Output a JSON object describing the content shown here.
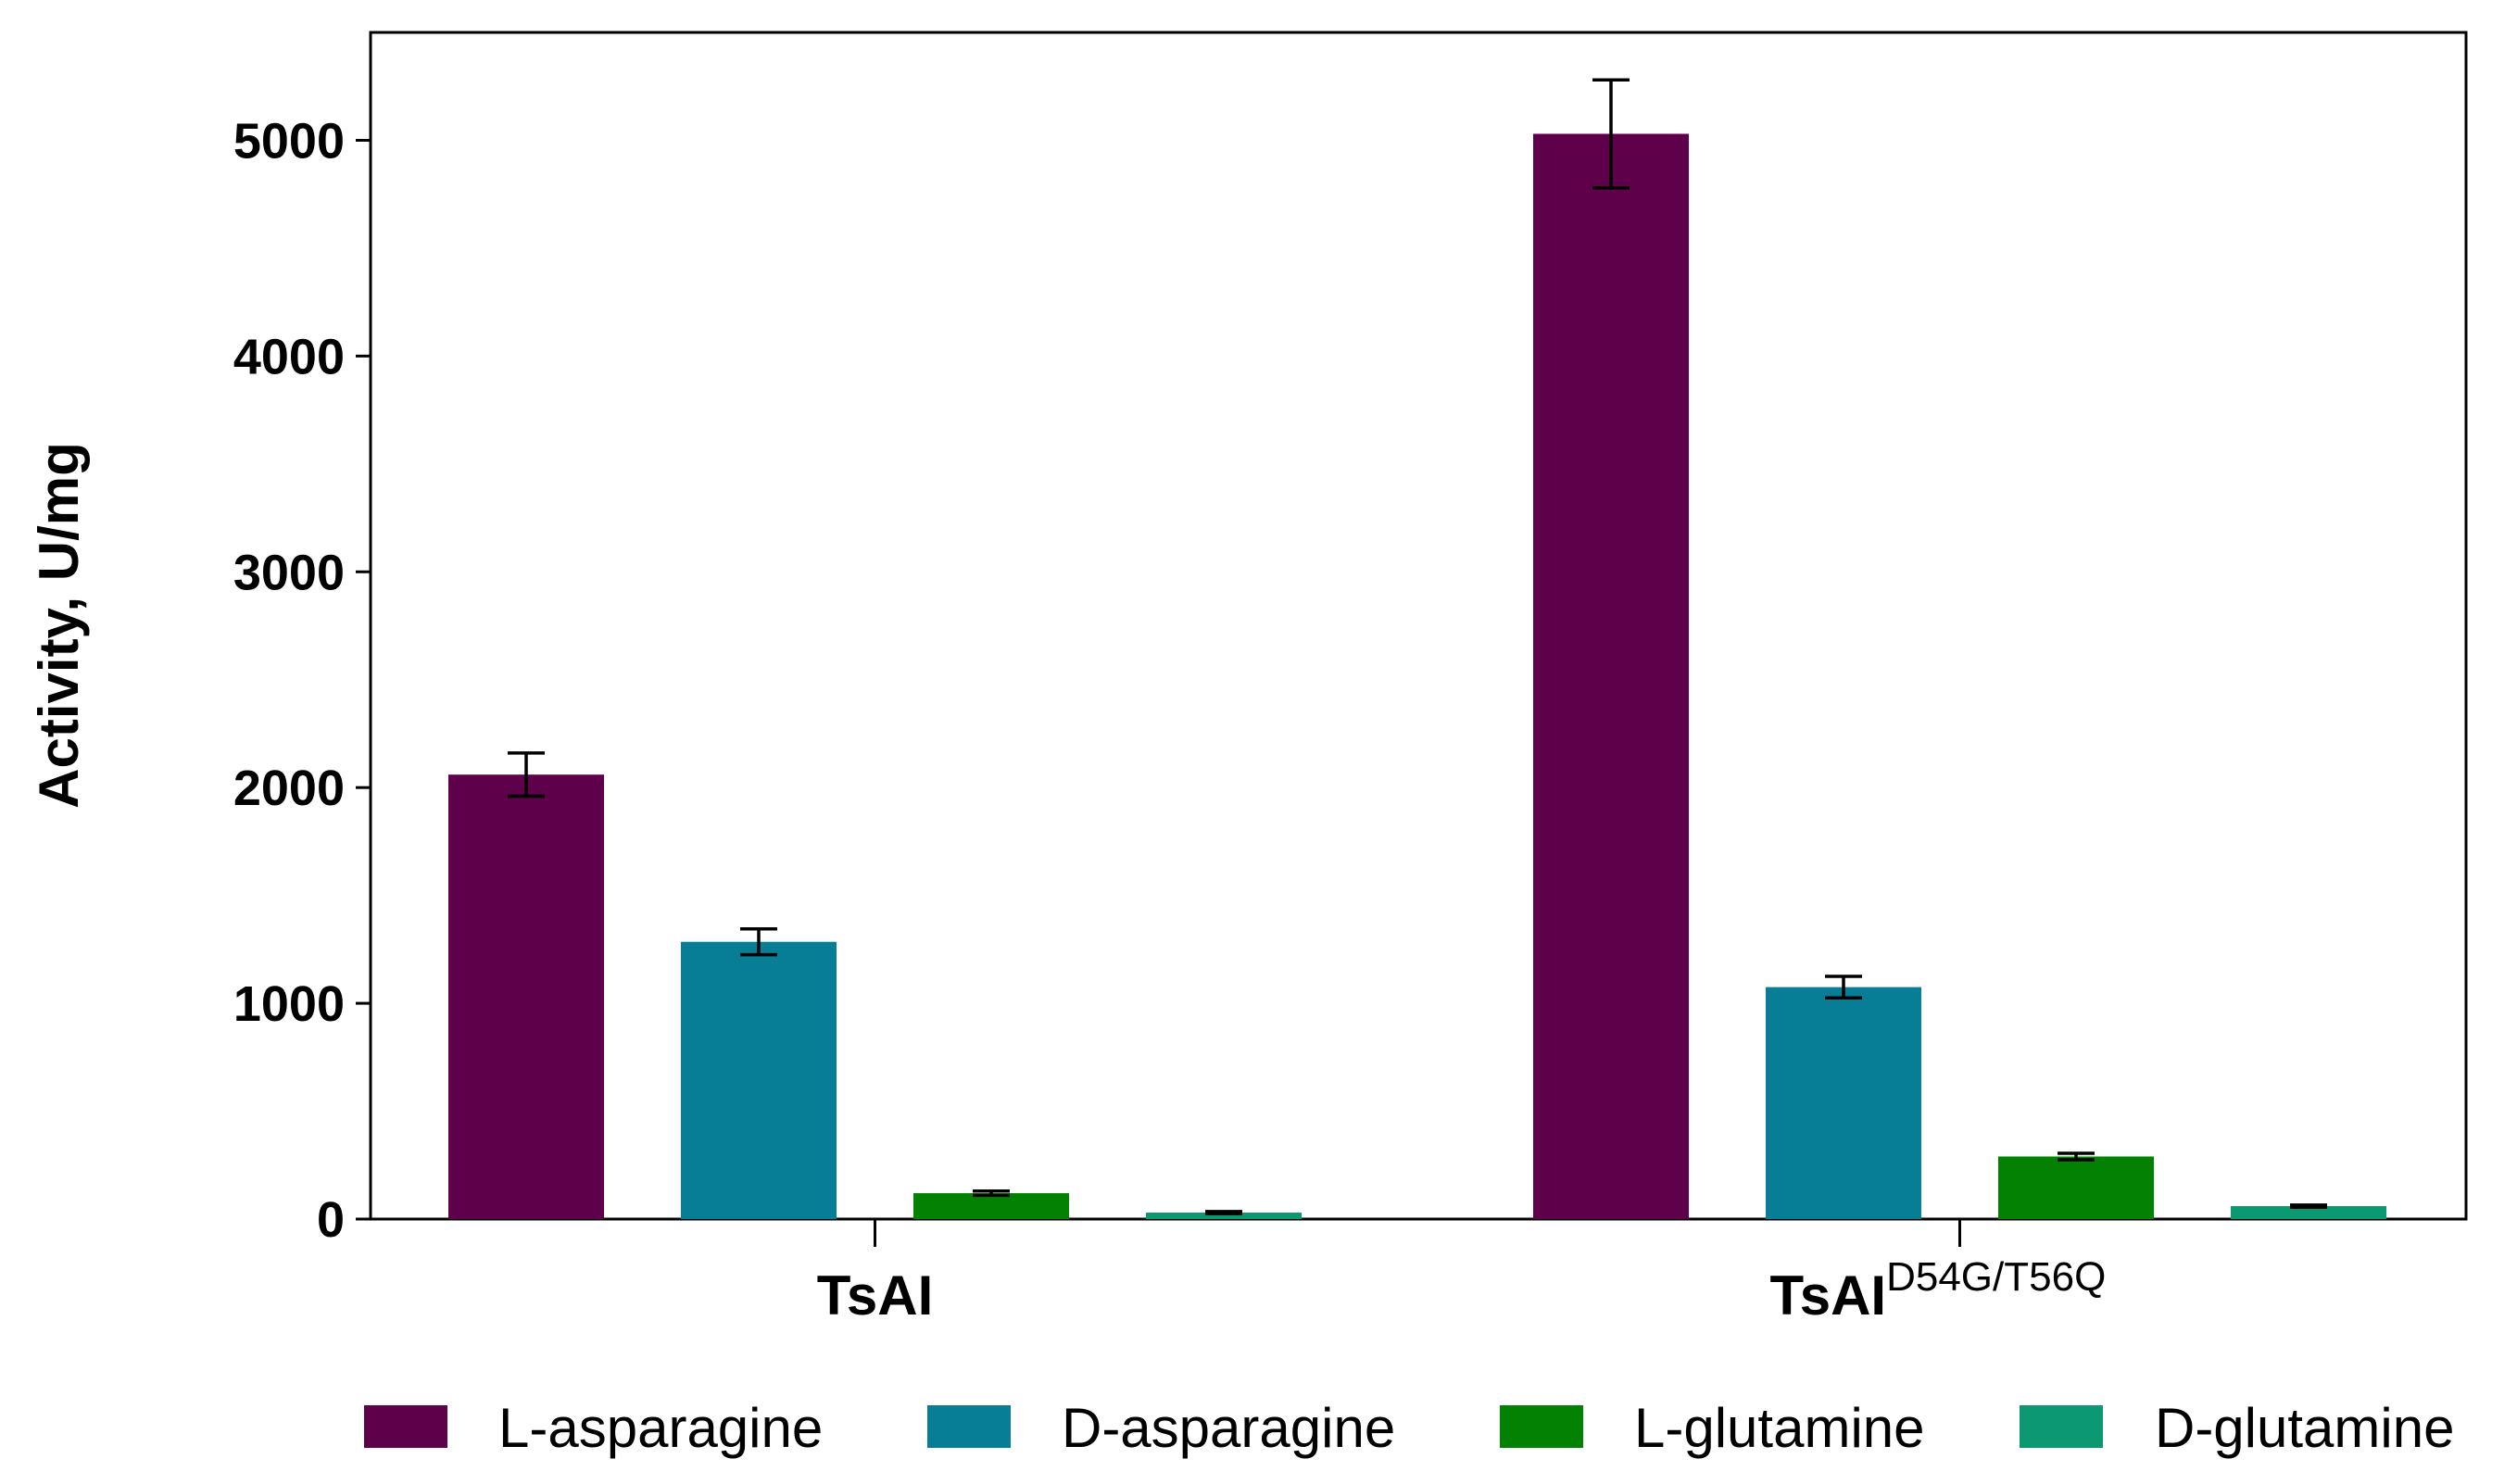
{
  "chart_data": {
    "type": "bar",
    "title": "",
    "xlabel": "",
    "ylabel": "Activity, U/mg",
    "ylim": [
      0,
      5500
    ],
    "yticks": [
      0,
      1000,
      2000,
      3000,
      4000,
      5000
    ],
    "grid": false,
    "legend_position": "bottom",
    "categories": [
      {
        "base": "TsAI",
        "sup": ""
      },
      {
        "base": "TsAI",
        "sup": "D54G/T56Q"
      }
    ],
    "series": [
      {
        "name": "L-asparagine",
        "color": "#5e004a",
        "values": [
          2060,
          5030
        ],
        "errors": [
          100,
          250
        ]
      },
      {
        "name": "D-asparagine",
        "color": "#077d96",
        "values": [
          1285,
          1075
        ],
        "errors": [
          60,
          50
        ]
      },
      {
        "name": "L-glutamine",
        "color": "#028102",
        "values": [
          120,
          290
        ],
        "errors": [
          10,
          15
        ]
      },
      {
        "name": "D-glutamine",
        "color": "#0c9870",
        "values": [
          30,
          60
        ],
        "errors": [
          5,
          5
        ]
      }
    ]
  }
}
